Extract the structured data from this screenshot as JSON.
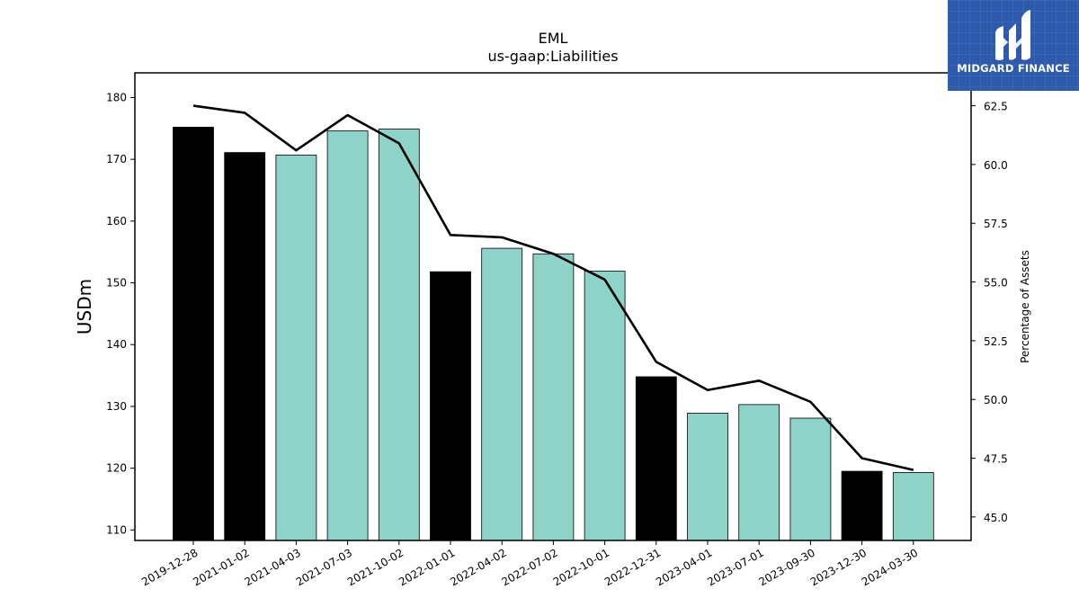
{
  "chart_data": {
    "type": "bar",
    "title": "EML",
    "subtitle": "us-gaap:Liabilities",
    "ylabel": "USDm",
    "ylabel_right": "Percentage of Assets",
    "categories": [
      "2019-12-28",
      "2021-01-02",
      "2021-04-03",
      "2021-07-03",
      "2021-10-02",
      "2022-01-01",
      "2022-04-02",
      "2022-07-02",
      "2022-10-01",
      "2022-12-31",
      "2023-04-01",
      "2023-07-01",
      "2023-09-30",
      "2023-12-30",
      "2024-03-30"
    ],
    "series": [
      {
        "type": "bar",
        "axis": "left",
        "values": [
          175.2,
          171.1,
          170.7,
          174.6,
          174.9,
          151.8,
          155.6,
          154.7,
          151.9,
          134.8,
          128.9,
          130.3,
          128.1,
          119.5,
          119.3
        ],
        "colors": [
          "#000000",
          "#000000",
          "#8dd3c7",
          "#8dd3c7",
          "#8dd3c7",
          "#000000",
          "#8dd3c7",
          "#8dd3c7",
          "#8dd3c7",
          "#000000",
          "#8dd3c7",
          "#8dd3c7",
          "#8dd3c7",
          "#000000",
          "#8dd3c7"
        ]
      },
      {
        "type": "line",
        "axis": "right",
        "color": "#000000",
        "values": [
          62.5,
          62.2,
          60.6,
          62.1,
          60.9,
          57.0,
          56.9,
          56.2,
          55.1,
          51.6,
          50.4,
          50.8,
          49.9,
          47.5,
          47.0
        ]
      }
    ],
    "ylim": [
      108.3,
      184.0
    ],
    "yticks": [
      110,
      120,
      130,
      140,
      150,
      160,
      170,
      180
    ],
    "ylim_right": [
      44.0,
      63.9
    ],
    "yticks_right": [
      "45.0",
      "47.5",
      "50.0",
      "52.5",
      "55.0",
      "57.5",
      "60.0",
      "62.5"
    ],
    "grid": false
  },
  "logo": {
    "text": "MIDGARD FINANCE"
  }
}
